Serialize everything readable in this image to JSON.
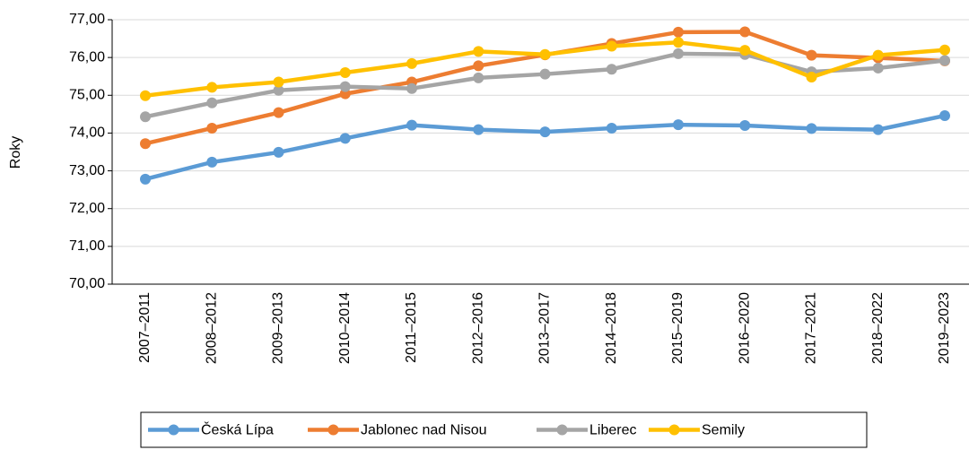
{
  "chart_data": {
    "type": "line",
    "y_label": "Roky",
    "categories": [
      "2007–2011",
      "2008–2012",
      "2009–2013",
      "2010–2014",
      "2011–2015",
      "2012–2016",
      "2013–2017",
      "2014–2018",
      "2015–2019",
      "2016–2020",
      "2017–2021",
      "2018–2022",
      "2019–2023"
    ],
    "series": [
      {
        "name": "Česká Lípa",
        "color": "#5b9bd5",
        "values": [
          72.78,
          73.23,
          73.49,
          73.86,
          74.21,
          74.09,
          74.03,
          74.13,
          74.22,
          74.2,
          74.12,
          74.09,
          74.46
        ]
      },
      {
        "name": "Jablonec nad Nisou",
        "color": "#ed7d31",
        "values": [
          73.72,
          74.13,
          74.54,
          75.04,
          75.35,
          75.78,
          76.07,
          76.37,
          76.67,
          76.68,
          76.06,
          75.99,
          75.91
        ]
      },
      {
        "name": "Liberec",
        "color": "#a5a5a5",
        "values": [
          74.43,
          74.8,
          75.13,
          75.23,
          75.18,
          75.46,
          75.56,
          75.69,
          76.1,
          76.08,
          75.62,
          75.72,
          75.92
        ]
      },
      {
        "name": "Semily",
        "color": "#ffc000",
        "values": [
          74.99,
          75.21,
          75.35,
          75.6,
          75.84,
          76.16,
          76.08,
          76.3,
          76.4,
          76.19,
          75.48,
          76.06,
          76.2
        ]
      }
    ],
    "ylim": [
      70,
      77
    ],
    "yticks": [
      {
        "value": 70,
        "label": "70,00"
      },
      {
        "value": 71,
        "label": "71,00"
      },
      {
        "value": 72,
        "label": "72,00"
      },
      {
        "value": 73,
        "label": "73,00"
      },
      {
        "value": 74,
        "label": "74,00"
      },
      {
        "value": 75,
        "label": "75,00"
      },
      {
        "value": 76,
        "label": "76,00"
      },
      {
        "value": 77,
        "label": "77,00"
      }
    ],
    "grid": true,
    "legend": "bottom"
  }
}
